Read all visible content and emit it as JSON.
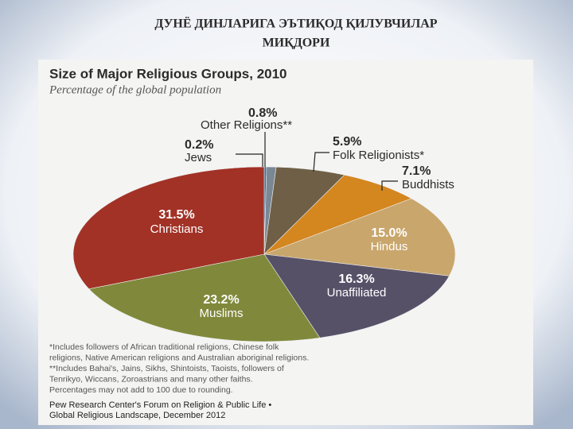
{
  "slide_title": [
    "ДУНЁ ДИНЛАРИГА ЭЪТИҚОД ҚИЛУВЧИЛАР",
    "МИҚДОРИ"
  ],
  "chart_data": {
    "type": "pie",
    "title": "Size of Major Religious Groups, 2010",
    "subtitle": "Percentage of the global population",
    "categories": [
      "Jews",
      "Other Religions**",
      "Folk Religionists*",
      "Buddhists",
      "Hindus",
      "Unaffiliated",
      "Muslims",
      "Christians"
    ],
    "values": [
      0.2,
      0.8,
      5.9,
      7.1,
      15.0,
      16.3,
      23.2,
      31.5
    ],
    "value_labels": [
      "0.2%",
      "0.8%",
      "5.9%",
      "7.1%",
      "15.0%",
      "16.3%",
      "23.2%",
      "31.5%"
    ],
    "colors": [
      "#3b6c9c",
      "#7a8795",
      "#6f5f46",
      "#d4861f",
      "#c9a66c",
      "#575168",
      "#80893b",
      "#a23226"
    ],
    "notes": [
      "*Includes followers of African traditional religions, Chinese folk",
      "religions, Native American religions and Australian aboriginal religions.",
      "**Includes Bahai's, Jains, Sikhs, Shintoists, Taoists, followers of",
      "Tenrikyo, Wiccans, Zoroastrians and many other faiths.",
      "Percentages may not add to 100 due to rounding."
    ],
    "source": [
      "Pew Research Center's Forum on Religion & Public Life •",
      "Global Religious Landscape, December 2012"
    ]
  }
}
